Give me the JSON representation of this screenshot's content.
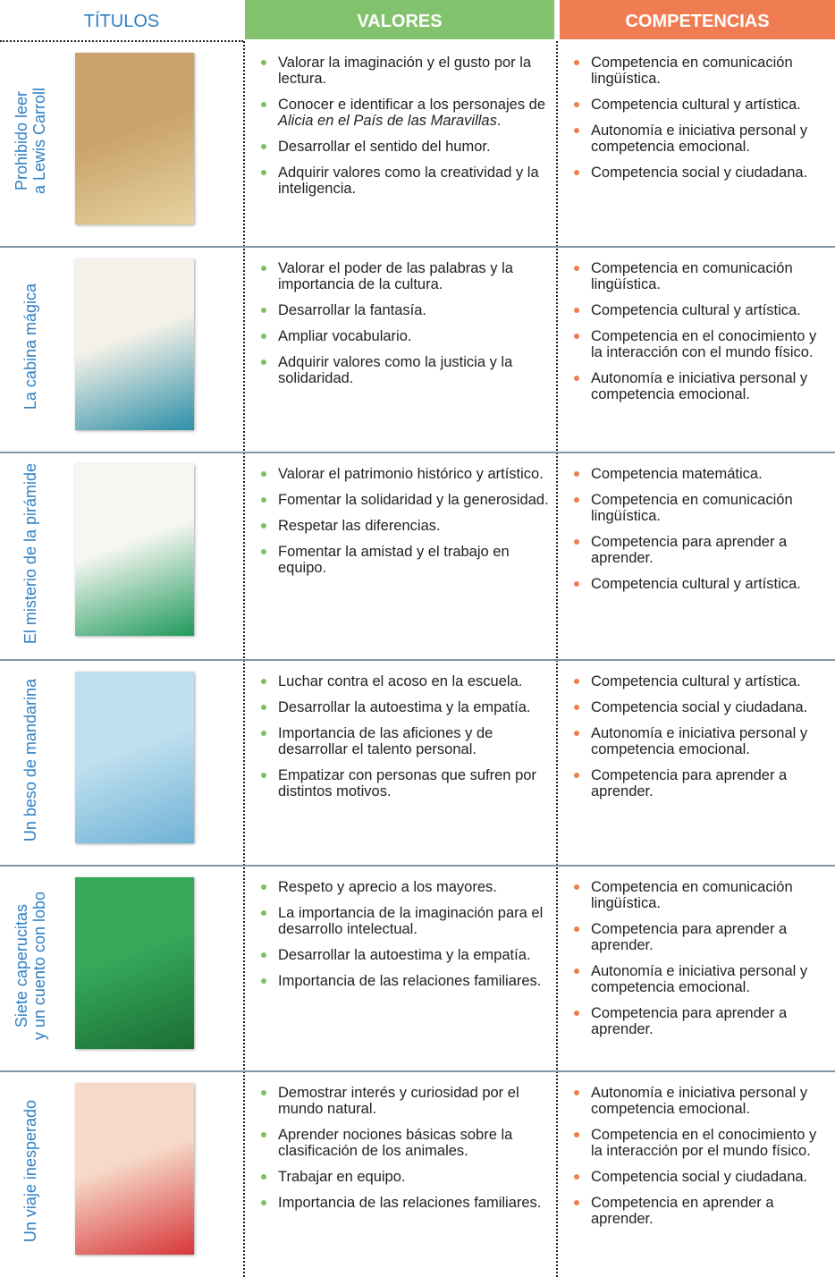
{
  "header": {
    "titulos": "TÍTULOS",
    "valores": "VALORES",
    "competencias": "COMPETENCIAS"
  },
  "rows": [
    {
      "title": [
        "Prohibido leer",
        "a Lewis Carroll"
      ],
      "valores": [
        {
          "text": "Valorar la imaginación y el gusto por la lectura."
        },
        {
          "text": "Conocer e identificar a los personajes de ",
          "italic": "Alicia en el País de las Maravillas",
          "end": "."
        },
        {
          "text": "Desarrollar el sentido del humor."
        },
        {
          "text": "Adquirir valores como la creatividad y la inteligencia."
        }
      ],
      "competencias": [
        "Competencia en comunicación lingüística.",
        "Competencia cultural y artística.",
        "Autonomía e iniciativa personal y competencia emocional.",
        "Competencia social y ciudadana."
      ]
    },
    {
      "title": [
        "La cabina mágica"
      ],
      "valores": [
        {
          "text": "Valorar el poder de las palabras y la importancia de la cultura."
        },
        {
          "text": "Desarrollar la fantasía."
        },
        {
          "text": "Ampliar vocabulario."
        },
        {
          "text": "Adquirir valores como la justicia y la solidaridad."
        }
      ],
      "competencias": [
        "Competencia en comunicación lingüística.",
        "Competencia cultural y artística.",
        "Competencia en el conocimiento y la interacción con el mundo físico.",
        "Autonomía e iniciativa personal y competencia emocional."
      ]
    },
    {
      "title": [
        "El misterio de la pirámide"
      ],
      "valores": [
        {
          "text": "Valorar el patrimonio histórico y artístico."
        },
        {
          "text": "Fomentar la solidaridad y la generosidad."
        },
        {
          "text": "Respetar las diferencias."
        },
        {
          "text": "Fomentar la amistad y el trabajo en equipo."
        }
      ],
      "competencias": [
        "Competencia matemática.",
        "Competencia en comunicación lingüística.",
        "Competencia para aprender a aprender.",
        "Competencia cultural y artística."
      ]
    },
    {
      "title": [
        "Un beso de mandarina"
      ],
      "valores": [
        {
          "text": "Luchar contra el acoso en la escuela."
        },
        {
          "text": "Desarrollar la autoestima y la empatía."
        },
        {
          "text": "Importancia de las aficiones y de desarrollar el talento personal."
        },
        {
          "text": "Empatizar con personas que sufren por distintos motivos."
        }
      ],
      "competencias": [
        "Competencia cultural y artística.",
        "Competencia social y ciudadana.",
        "Autonomía e iniciativa personal y competencia emocional.",
        "Competencia para aprender a aprender."
      ]
    },
    {
      "title": [
        "Siete caperucitas",
        "y un cuento con lobo"
      ],
      "valores": [
        {
          "text": "Respeto y aprecio a los mayores."
        },
        {
          "text": "La importancia de la imaginación para el desarrollo intelectual."
        },
        {
          "text": "Desarrollar la autoestima y la empatía."
        },
        {
          "text": "Importancia de las relaciones familiares."
        }
      ],
      "competencias": [
        "Competencia en comunicación lingüística.",
        "Competencia para aprender a aprender.",
        "Autonomía e iniciativa personal y competencia emocional.",
        "Competencia para aprender a aprender."
      ]
    },
    {
      "title": [
        "Un viaje inesperado"
      ],
      "valores": [
        {
          "text": "Demostrar interés y curiosidad por el mundo natural."
        },
        {
          "text": "Aprender nociones básicas sobre la clasificación de los animales."
        },
        {
          "text": "Trabajar en equipo."
        },
        {
          "text": "Importancia de las relaciones familiares."
        }
      ],
      "competencias": [
        "Autonomía e iniciativa personal y competencia emocional.",
        "Competencia en el conocimiento y la interacción por el mundo físico.",
        "Competencia social y ciudadana.",
        "Competencia en aprender a aprender."
      ]
    }
  ]
}
